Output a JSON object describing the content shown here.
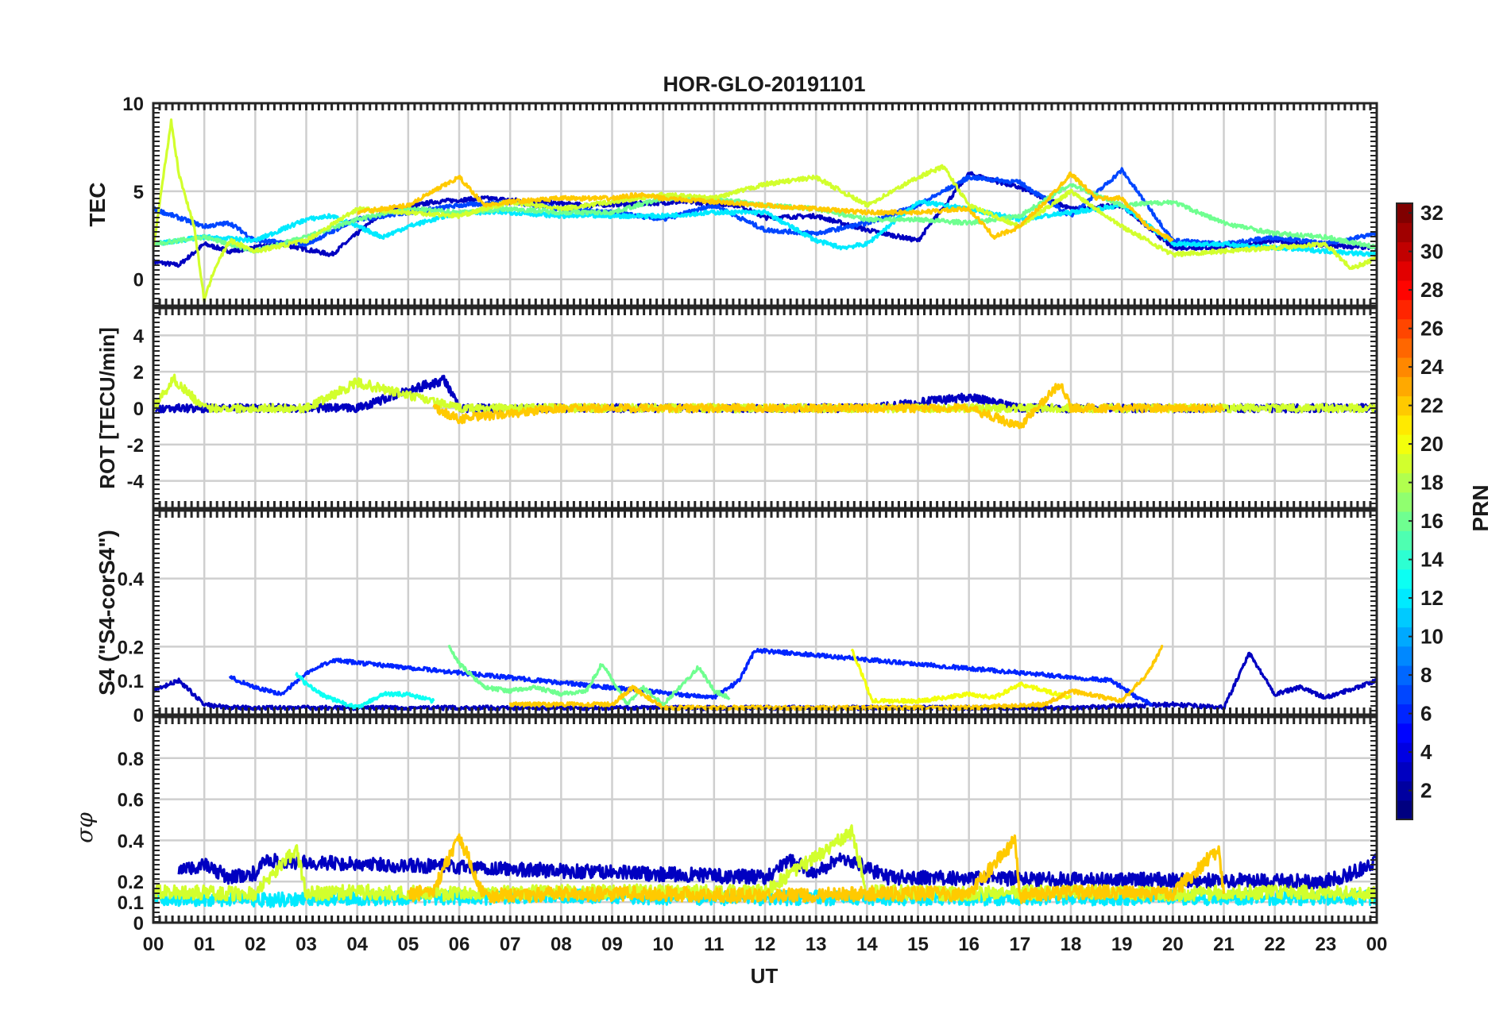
{
  "chart_data": {
    "type": "line",
    "title": "HOR-GLO-20191101",
    "xlabel": "UT",
    "x_ticks": [
      "00",
      "01",
      "02",
      "03",
      "04",
      "05",
      "06",
      "07",
      "08",
      "09",
      "10",
      "11",
      "12",
      "13",
      "14",
      "15",
      "16",
      "17",
      "18",
      "19",
      "20",
      "21",
      "22",
      "23",
      "00"
    ],
    "xlim": [
      0,
      24
    ],
    "grid": true,
    "colorbar": {
      "label": "PRN",
      "range": [
        1,
        32
      ],
      "ticks": [
        "2",
        "4",
        "6",
        "8",
        "10",
        "12",
        "14",
        "16",
        "18",
        "20",
        "22",
        "24",
        "26",
        "28",
        "30",
        "32"
      ],
      "colormap": "jet"
    },
    "panels": [
      {
        "name": "tec",
        "ylabel": "TEC",
        "ylim": [
          -1.5,
          10
        ],
        "yticks": [
          "0",
          "5",
          "10"
        ],
        "series": [
          {
            "prn": 3,
            "x": [
              0,
              0.5,
              1,
              1.5,
              2,
              2.5,
              3.5,
              4.5,
              5.5,
              6.5,
              7.5,
              8.5,
              9.5,
              10.5,
              11.5,
              12,
              13,
              14,
              15,
              16,
              17,
              18,
              19,
              20,
              21,
              22,
              23,
              24
            ],
            "y": [
              1.0,
              0.8,
              2.0,
              1.6,
              1.8,
              2.0,
              1.4,
              3.8,
              4.4,
              4.6,
              4.4,
              4.2,
              4.3,
              4.4,
              4.2,
              3.5,
              3.6,
              2.8,
              2.2,
              6.0,
              5.2,
              4.0,
              4.2,
              1.8,
              1.8,
              2.2,
              1.9,
              1.8
            ]
          },
          {
            "prn": 7,
            "x": [
              0,
              0.4,
              1,
              1.5,
              2,
              3,
              4,
              5,
              6,
              7,
              8,
              9,
              10,
              11,
              12,
              13,
              14,
              15,
              16,
              17,
              18,
              19,
              20,
              21,
              22,
              23,
              24
            ],
            "y": [
              4.0,
              3.6,
              3.0,
              3.2,
              2.2,
              2.0,
              3.4,
              3.8,
              4.2,
              4.4,
              4.0,
              3.8,
              3.4,
              4.2,
              2.8,
              2.6,
              3.2,
              4.2,
              5.8,
              5.5,
              3.6,
              6.2,
              2.2,
              2.0,
              2.4,
              2.0,
              2.6
            ]
          },
          {
            "prn": 12,
            "x": [
              0,
              1,
              2,
              3,
              3.5,
              4.5,
              5,
              6,
              7,
              8,
              9,
              10,
              11,
              12,
              13,
              13.5,
              14,
              15,
              16,
              17,
              18,
              19,
              20,
              21,
              22,
              23,
              24
            ],
            "y": [
              2.0,
              2.4,
              2.2,
              3.4,
              3.6,
              2.4,
              3.0,
              3.8,
              3.8,
              3.6,
              3.6,
              3.6,
              3.8,
              3.8,
              2.2,
              1.8,
              2.0,
              4.4,
              4.0,
              3.4,
              3.8,
              4.2,
              2.0,
              2.0,
              1.8,
              1.6,
              1.4
            ]
          },
          {
            "prn": 16,
            "x": [
              0,
              1,
              2,
              3,
              4,
              5,
              6,
              7,
              8,
              9,
              10,
              11,
              12,
              13,
              14,
              15,
              16,
              17,
              18,
              19,
              20,
              21,
              22,
              23,
              24
            ],
            "y": [
              2.0,
              2.4,
              1.6,
              2.4,
              3.4,
              4.0,
              3.8,
              4.0,
              3.8,
              3.8,
              4.6,
              4.6,
              4.2,
              4.0,
              3.4,
              3.4,
              3.2,
              3.6,
              5.4,
              4.2,
              4.4,
              3.2,
              2.6,
              2.4,
              1.8
            ]
          },
          {
            "prn": 19,
            "x": [
              0,
              0.35,
              0.5,
              0.8,
              1.0,
              1.2,
              1.5,
              2,
              3,
              4,
              5,
              6,
              7,
              8,
              9,
              10,
              11,
              12,
              12.5,
              13,
              14,
              15,
              15.5,
              16,
              17,
              18,
              19,
              20,
              21,
              22,
              23,
              23.5,
              24
            ],
            "y": [
              1.8,
              9.0,
              6.0,
              3.0,
              -1.2,
              0.6,
              2.2,
              1.6,
              2.2,
              4.0,
              3.8,
              3.6,
              4.4,
              4.0,
              4.4,
              4.8,
              4.6,
              5.4,
              5.6,
              5.8,
              4.2,
              5.8,
              6.4,
              4.2,
              3.0,
              5.0,
              3.0,
              1.4,
              1.6,
              1.8,
              2.0,
              0.6,
              1.2
            ]
          },
          {
            "prn": 22,
            "x": [
              4,
              5,
              5.5,
              6,
              6.5,
              7,
              8,
              9,
              9.5,
              10,
              11,
              12,
              13,
              14,
              15,
              16,
              16.5,
              17,
              17.5,
              18,
              18.5,
              19,
              19.5,
              20
            ],
            "y": [
              3.8,
              4.2,
              5.0,
              5.8,
              4.2,
              4.4,
              4.6,
              4.6,
              4.8,
              4.6,
              4.4,
              4.2,
              4.0,
              3.8,
              3.8,
              4.0,
              2.4,
              3.0,
              4.4,
              6.0,
              4.6,
              4.6,
              3.0,
              2.2
            ]
          }
        ]
      },
      {
        "name": "rot",
        "ylabel": "ROT [TECU/min]",
        "ylim": [
          -5.5,
          5.5
        ],
        "yticks": [
          "4",
          "2",
          "0",
          "-2",
          "-4"
        ],
        "series": [
          {
            "prn": 3,
            "x": [
              0,
              2,
              4,
              5.7,
              6,
              8,
              10,
              12,
              14,
              16,
              17,
              18,
              20,
              22,
              24
            ],
            "y": [
              0,
              0,
              0,
              1.6,
              0,
              0,
              0,
              0,
              0,
              0.6,
              0,
              0,
              0,
              0,
              0
            ]
          },
          {
            "prn": 19,
            "x": [
              0,
              0.4,
              1,
              3,
              4,
              6,
              9,
              11,
              13,
              15,
              17,
              19,
              21,
              24
            ],
            "y": [
              0,
              1.6,
              0,
              0,
              1.4,
              0,
              0,
              0,
              0,
              0,
              0,
              0,
              0,
              0
            ]
          },
          {
            "prn": 22,
            "x": [
              5.5,
              6,
              8,
              10,
              12,
              16,
              17,
              17.8,
              18,
              19,
              20,
              21
            ],
            "y": [
              0,
              -0.6,
              0,
              0,
              0,
              0,
              -1.0,
              1.4,
              0,
              0,
              0,
              0
            ]
          }
        ]
      },
      {
        "name": "s4",
        "ylabel": "S4 (\"S4-corS4\")",
        "ylim": [
          0,
          0.6
        ],
        "yticks": [
          "0",
          "0.1",
          "0.2",
          "0.4"
        ],
        "series": [
          {
            "prn": 3,
            "x": [
              0,
              0.5,
              1,
              1.5,
              2,
              3,
              4,
              5,
              6,
              8,
              10,
              12,
              14,
              16,
              18,
              20,
              21,
              21.5,
              22,
              22.5,
              23,
              24
            ],
            "y": [
              0.07,
              0.1,
              0.03,
              0.02,
              0.02,
              0.02,
              0.02,
              0.02,
              0.02,
              0.02,
              0.02,
              0.02,
              0.02,
              0.02,
              0.02,
              0.03,
              0.02,
              0.18,
              0.06,
              0.08,
              0.05,
              0.1
            ]
          },
          {
            "prn": 6,
            "x": [
              1.5,
              2,
              2.5,
              3,
              3.5,
              11,
              11.5,
              11.8,
              18.8,
              19,
              19.3,
              19.6
            ],
            "y": [
              0.11,
              0.08,
              0.06,
              0.12,
              0.16,
              0.05,
              0.1,
              0.19,
              0.1,
              0.08,
              0.05,
              0.03
            ]
          },
          {
            "prn": 13,
            "x": [
              2.8,
              3,
              3.3,
              3.6,
              4,
              4.5,
              5,
              5.5
            ],
            "y": [
              0.12,
              0.09,
              0.06,
              0.04,
              0.02,
              0.06,
              0.06,
              0.04
            ]
          },
          {
            "prn": 16,
            "x": [
              5.8,
              6,
              6.5,
              7,
              7.5,
              8,
              8.5,
              8.8,
              9.3,
              9.6,
              10,
              10.7,
              11,
              11.3
            ],
            "y": [
              0.2,
              0.15,
              0.08,
              0.07,
              0.08,
              0.06,
              0.07,
              0.15,
              0.03,
              0.08,
              0.03,
              0.14,
              0.07,
              0.05
            ]
          },
          {
            "prn": 20,
            "x": [
              13.7,
              13.9,
              14.1,
              15,
              16,
              16.5,
              17,
              18
            ],
            "y": [
              0.19,
              0.12,
              0.04,
              0.04,
              0.06,
              0.05,
              0.09,
              0.05
            ]
          },
          {
            "prn": 22,
            "x": [
              7,
              8,
              9,
              9.4,
              10,
              12,
              14,
              16,
              17.5,
              18,
              19,
              19.5,
              19.8
            ],
            "y": [
              0.03,
              0.03,
              0.03,
              0.08,
              0.02,
              0.02,
              0.02,
              0.02,
              0.03,
              0.07,
              0.04,
              0.12,
              0.2
            ]
          }
        ]
      },
      {
        "name": "sigma",
        "ylabel": "σφ",
        "ylim": [
          0,
          1.0
        ],
        "yticks": [
          "0",
          "0.1",
          "0.2",
          "0.4",
          "0.6",
          "0.8"
        ],
        "series": [
          {
            "prn": 3,
            "x": [
              0.5,
              1,
              1.5,
              2,
              2.2,
              12,
              12.5,
              13,
              13.5,
              14.4,
              23,
              23.5,
              24
            ],
            "y": [
              0.25,
              0.28,
              0.22,
              0.24,
              0.3,
              0.22,
              0.3,
              0.24,
              0.32,
              0.22,
              0.2,
              0.24,
              0.3
            ]
          },
          {
            "prn": 12,
            "x": [
              0,
              2,
              4,
              6,
              8,
              10,
              12,
              14,
              16,
              18,
              20,
              22,
              24
            ],
            "y": [
              0.12,
              0.11,
              0.12,
              0.12,
              0.13,
              0.12,
              0.12,
              0.12,
              0.12,
              0.12,
              0.12,
              0.12,
              0.12
            ]
          },
          {
            "prn": 19,
            "x": [
              0,
              2,
              2.8,
              3,
              4,
              6,
              8,
              10,
              12,
              13.7,
              14,
              16,
              18,
              20,
              22,
              24
            ],
            "y": [
              0.15,
              0.14,
              0.36,
              0.14,
              0.15,
              0.14,
              0.15,
              0.15,
              0.15,
              0.44,
              0.15,
              0.14,
              0.15,
              0.14,
              0.15,
              0.14
            ]
          },
          {
            "prn": 22,
            "x": [
              5,
              5.5,
              6,
              6.5,
              8,
              10,
              12,
              14,
              16,
              16.9,
              17,
              18,
              20,
              20.9,
              21
            ],
            "y": [
              0.13,
              0.16,
              0.42,
              0.13,
              0.14,
              0.14,
              0.13,
              0.14,
              0.14,
              0.4,
              0.13,
              0.15,
              0.14,
              0.36,
              0.14
            ]
          }
        ]
      }
    ]
  }
}
